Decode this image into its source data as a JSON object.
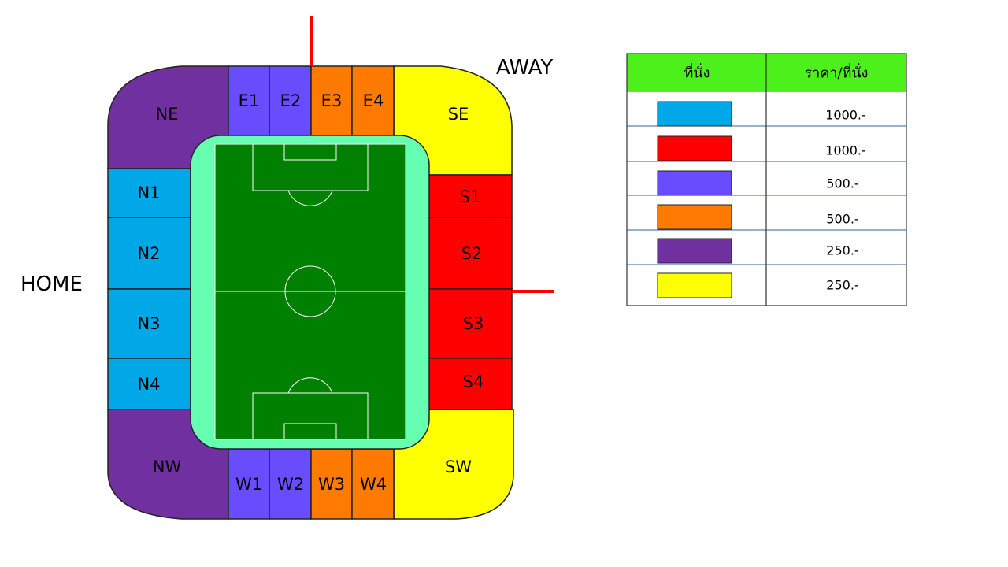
{
  "labels": {
    "home": "HOME",
    "away": "AWAY"
  },
  "sections": {
    "NE": {
      "label": "NE",
      "color": "#7030A0"
    },
    "NW": {
      "label": "NW",
      "color": "#7030A0"
    },
    "SE": {
      "label": "SE",
      "color": "#FFFF00"
    },
    "SW": {
      "label": "SW",
      "color": "#FFFF00"
    },
    "E1": {
      "label": "E1",
      "color": "#6A4CFF"
    },
    "E2": {
      "label": "E2",
      "color": "#6A4CFF"
    },
    "E3": {
      "label": "E3",
      "color": "#FF7A00"
    },
    "E4": {
      "label": "E4",
      "color": "#FF7A00"
    },
    "W1": {
      "label": "W1",
      "color": "#6A4CFF"
    },
    "W2": {
      "label": "W2",
      "color": "#6A4CFF"
    },
    "W3": {
      "label": "W3",
      "color": "#FF7A00"
    },
    "W4": {
      "label": "W4",
      "color": "#FF7A00"
    },
    "N1": {
      "label": "N1",
      "color": "#00A8E8"
    },
    "N2": {
      "label": "N2",
      "color": "#00A8E8"
    },
    "N3": {
      "label": "N3",
      "color": "#00A8E8"
    },
    "N4": {
      "label": "N4",
      "color": "#00A8E8"
    },
    "S1": {
      "label": "S1",
      "color": "#FF0000"
    },
    "S2": {
      "label": "S2",
      "color": "#FF0000"
    },
    "S3": {
      "label": "S3",
      "color": "#FF0000"
    },
    "S4": {
      "label": "S4",
      "color": "#FF0000"
    }
  },
  "pitch": {
    "outer_color": "#66FFB2",
    "grass_color": "#008000",
    "line_color": "#FFFFFF"
  },
  "marker_color": "#FF0000",
  "legend": {
    "header_color": "#4CF01A",
    "seat_header": "ที่นั่ง",
    "price_header": "ราคา/ที่นั่ง",
    "rows": [
      {
        "color": "#00A8E8",
        "price": "1000.-"
      },
      {
        "color": "#FF0000",
        "price": "1000.-"
      },
      {
        "color": "#6A4CFF",
        "price": "500.-"
      },
      {
        "color": "#FF7A00",
        "price": "500.-"
      },
      {
        "color": "#7030A0",
        "price": "250.-"
      },
      {
        "color": "#FFFF00",
        "price": "250.-"
      }
    ]
  }
}
